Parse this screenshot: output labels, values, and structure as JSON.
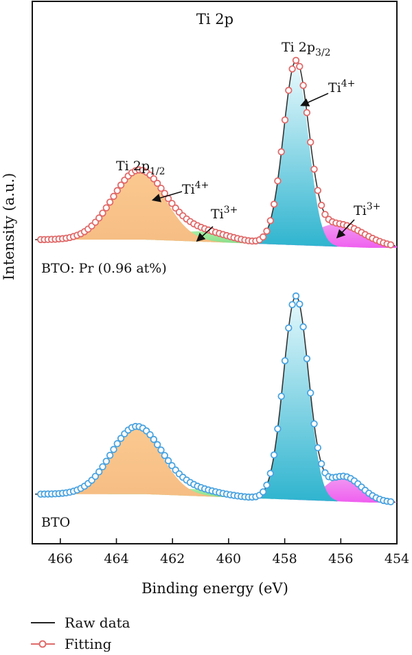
{
  "chart_data": {
    "type": "line",
    "title": "Ti 2p",
    "xlabel": "Binding energy (eV)",
    "ylabel": "Intensity (a.u.)",
    "xlim": [
      467,
      454
    ],
    "x_reversed": true,
    "x_ticks": [
      "466",
      "464",
      "462",
      "460",
      "458",
      "456",
      "454"
    ],
    "y_ticks_shown": false,
    "legend": {
      "placement": "bottom-left",
      "entries": [
        "Raw data",
        "Fitting"
      ]
    },
    "panels": [
      {
        "label": "BTO: Pr (0.96 at%)",
        "fit_color": "#e06a6a",
        "peaks": [
          {
            "component": "Ti4+ 2p3/2",
            "center": 457.6,
            "height": 2.6,
            "fwhm": 1.05,
            "color": "#32b8d2"
          },
          {
            "component": "Ti3+ 2p3/2",
            "center": 456.1,
            "height": 0.33,
            "fwhm": 2.2,
            "color": "#ee66ee"
          },
          {
            "component": "Ti4+ 2p1/2",
            "center": 463.2,
            "height": 1.0,
            "fwhm": 2.2,
            "color": "#f7b878"
          },
          {
            "component": "Ti3+ 2p1/2",
            "center": 461.0,
            "height": 0.15,
            "fwhm": 2.4,
            "color": "#8ee08e"
          }
        ],
        "annotations": [
          {
            "text": "Ti 2p",
            "sub": "3/2",
            "x": 458.0
          },
          {
            "text": "Ti 2p",
            "sub": "1/2",
            "x": 463.3
          },
          {
            "text": "Ti",
            "sup": "4+",
            "x": 457.3
          },
          {
            "text": "Ti",
            "sup": "4+",
            "x": 462.2
          },
          {
            "text": "Ti",
            "sup": "3+",
            "x": 460.7
          },
          {
            "text": "Ti",
            "sup": "3+",
            "x": 455.5
          }
        ]
      },
      {
        "label": "BTO",
        "fit_color": "#4aa3e0",
        "peaks": [
          {
            "component": "Ti4+ 2p3/2",
            "center": 457.6,
            "height": 2.9,
            "fwhm": 1.05,
            "color": "#32b8d2"
          },
          {
            "component": "Ti3+ 2p3/2",
            "center": 455.9,
            "height": 0.36,
            "fwhm": 1.5,
            "color": "#ee66ee"
          },
          {
            "component": "Ti4+ 2p1/2",
            "center": 463.3,
            "height": 0.95,
            "fwhm": 2.1,
            "color": "#f7b878"
          },
          {
            "component": "Ti3+ 2p1/2",
            "center": 461.4,
            "height": 0.1,
            "fwhm": 2.4,
            "color": "#8ee08e"
          }
        ]
      }
    ]
  }
}
